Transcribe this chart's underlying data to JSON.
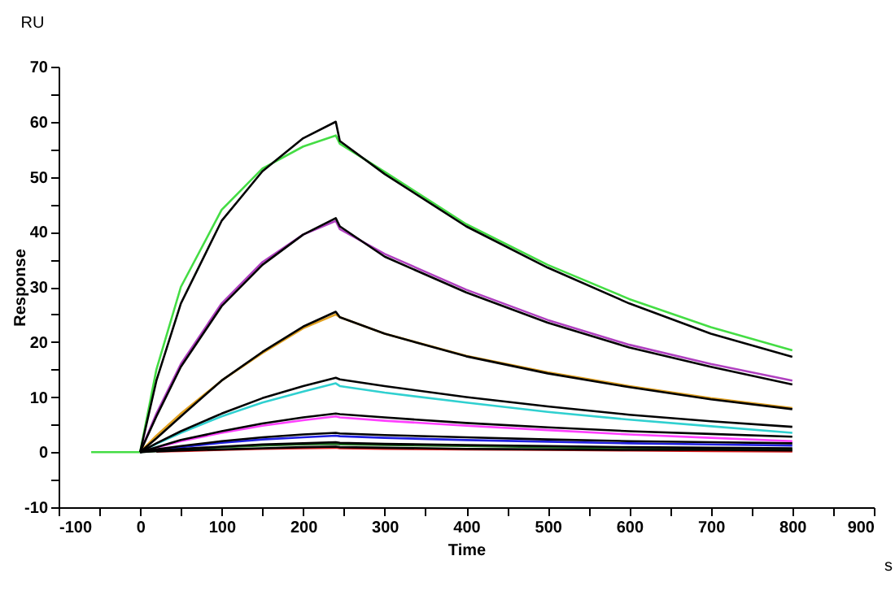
{
  "chart_data": {
    "type": "line",
    "xlabel": "Time",
    "ylabel": "Response",
    "annotations": [
      "RU",
      "s"
    ],
    "xlim": [
      -100,
      900
    ],
    "xticks": [
      -100,
      {
        "value": -50,
        "label": null
      },
      0,
      {
        "value": 50,
        "label": null
      },
      100,
      {
        "value": 150,
        "label": null
      },
      200,
      {
        "value": 250,
        "label": null
      },
      300,
      {
        "value": 350,
        "label": null
      },
      400,
      {
        "value": 450,
        "label": null
      },
      500,
      {
        "value": 550,
        "label": null
      },
      600,
      {
        "value": 650,
        "label": null
      },
      700,
      {
        "value": 750,
        "label": null
      },
      800,
      {
        "value": 850,
        "label": null
      },
      900
    ],
    "ylim": [
      -10,
      70
    ],
    "yticks": [
      -10,
      {
        "value": -5,
        "label": null
      },
      0,
      {
        "value": 5,
        "label": null
      },
      10,
      {
        "value": 15,
        "label": null
      },
      20,
      {
        "value": 25,
        "label": null
      },
      30,
      {
        "value": 35,
        "label": null
      },
      40,
      {
        "value": 45,
        "label": null
      },
      50,
      {
        "value": 55,
        "label": null
      },
      60,
      {
        "value": 65,
        "label": null
      },
      70
    ],
    "grid": false,
    "legend": false,
    "marker": "none",
    "line_style": "solid",
    "x": [
      -60,
      -30,
      0,
      20,
      50,
      100,
      150,
      200,
      240,
      245,
      300,
      400,
      500,
      600,
      700,
      800
    ],
    "series": [
      {
        "color": "#44dd44",
        "values": [
          0,
          0,
          0,
          15,
          30,
          44,
          51.5,
          55.5,
          57.5,
          56,
          50.9,
          41.4,
          34,
          27.8,
          22.7,
          18.5
        ]
      },
      {
        "color": "#b040c0",
        "values": [
          null,
          null,
          0,
          7,
          16,
          27,
          34.5,
          39.5,
          42,
          40.5,
          36,
          29.5,
          24,
          19.5,
          16,
          13
        ]
      },
      {
        "color": "#e0a020",
        "values": [
          null,
          null,
          0,
          3,
          7,
          13,
          18,
          22.5,
          25,
          24.5,
          21.5,
          17.5,
          14.5,
          12,
          9.8,
          8
        ]
      },
      {
        "color": "#30d0d0",
        "values": [
          null,
          null,
          0,
          1.5,
          3.5,
          6.5,
          9,
          11,
          12.5,
          12,
          10.8,
          9,
          7.3,
          5.9,
          4.7,
          3.5
        ]
      },
      {
        "color": "#ff40ff",
        "values": [
          null,
          null,
          0,
          0.8,
          2,
          3.5,
          4.8,
          5.8,
          6.5,
          6.3,
          5.7,
          4.8,
          4,
          3.2,
          2.6,
          2
        ]
      },
      {
        "color": "#2020e0",
        "values": [
          null,
          null,
          0,
          0.4,
          0.9,
          1.7,
          2.3,
          2.7,
          3,
          2.9,
          2.6,
          2.2,
          1.9,
          1.6,
          1.4,
          1.2
        ]
      },
      {
        "color": "#207020",
        "values": [
          null,
          null,
          0,
          0.2,
          0.5,
          0.9,
          1.2,
          1.4,
          1.5,
          1.4,
          1.3,
          1.1,
          0.9,
          0.7,
          0.6,
          0.5
        ]
      },
      {
        "color": "#e02020",
        "values": [
          null,
          null,
          null,
          0.1,
          0.2,
          0.4,
          0.6,
          0.7,
          0.8,
          0.7,
          0.6,
          0.5,
          0.4,
          0.3,
          0.2,
          0.1
        ]
      },
      {
        "color": "#000000",
        "values": [
          null,
          null,
          0,
          13,
          27,
          42,
          51,
          57,
          60,
          56.5,
          50.5,
          41,
          33.5,
          27,
          21.5,
          17.3
        ]
      },
      {
        "color": "#000000",
        "values": [
          null,
          null,
          0,
          6.5,
          15.5,
          26.5,
          34,
          39.5,
          42.5,
          41,
          35.5,
          29,
          23.5,
          19,
          15.5,
          12.3
        ]
      },
      {
        "color": "#000000",
        "values": [
          null,
          null,
          0,
          2.5,
          6.5,
          13,
          18.2,
          22.8,
          25.5,
          24.5,
          21.5,
          17.4,
          14.3,
          11.8,
          9.6,
          7.8
        ]
      },
      {
        "color": "#000000",
        "values": [
          null,
          null,
          0,
          1.6,
          3.8,
          7,
          9.8,
          12,
          13.5,
          13.2,
          12,
          10,
          8.3,
          6.8,
          5.6,
          4.6
        ]
      },
      {
        "color": "#000000",
        "values": [
          null,
          null,
          0,
          0.9,
          2.2,
          3.8,
          5.2,
          6.3,
          7,
          6.9,
          6.3,
          5.3,
          4.5,
          3.8,
          3.3,
          2.8
        ]
      },
      {
        "color": "#000000",
        "values": [
          null,
          null,
          0,
          0.5,
          1.1,
          2,
          2.7,
          3.2,
          3.5,
          3.4,
          3.1,
          2.7,
          2.3,
          2,
          1.8,
          1.6
        ]
      },
      {
        "color": "#000000",
        "values": [
          null,
          null,
          0,
          0.2,
          0.6,
          1,
          1.4,
          1.6,
          1.8,
          1.7,
          1.5,
          1.3,
          1.1,
          0.9,
          0.8,
          0.7
        ]
      },
      {
        "color": "#000000",
        "values": [
          null,
          null,
          null,
          0.1,
          0.3,
          0.5,
          0.7,
          0.9,
          1,
          0.9,
          0.8,
          0.6,
          0.5,
          0.4,
          0.4,
          0.3
        ]
      }
    ]
  }
}
